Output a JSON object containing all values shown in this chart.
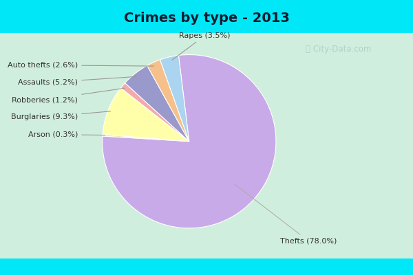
{
  "title": "Crimes by type - 2013",
  "title_fontsize": 14,
  "labels": [
    "Thefts",
    "Burglaries",
    "Rapes",
    "Auto thefts",
    "Assaults",
    "Robberies",
    "Arson"
  ],
  "values": [
    78.0,
    9.3,
    3.5,
    2.6,
    5.2,
    1.2,
    0.3
  ],
  "colors": [
    "#c8aae8",
    "#ffffaa",
    "#aad4f0",
    "#f5c08a",
    "#9999cc",
    "#f4aaaa",
    "#e8e8a0"
  ],
  "bg_cyan": "#00e8f8",
  "bg_inner": "#d8f0e0",
  "startangle": 97,
  "annotation_labels": [
    "Thefts (78.0%)",
    "Burglaries (9.3%)",
    "Rapes (3.5%)",
    "Auto thefts (2.6%)",
    "Assaults (5.2%)",
    "Robberies (1.2%)",
    "Arson (0.3%)"
  ],
  "watermark": "City-Data.com",
  "title_color": "#222222",
  "label_fontsize": 8.0
}
